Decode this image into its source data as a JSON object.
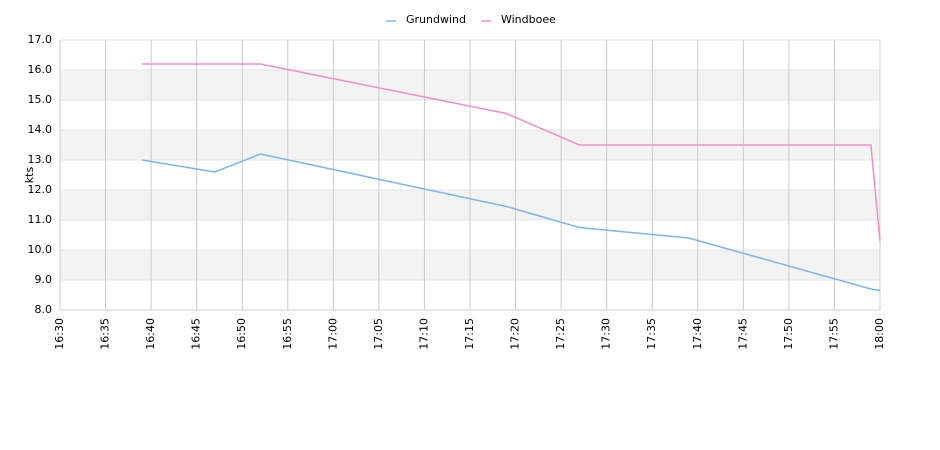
{
  "chart_data": {
    "type": "line",
    "y_label": "kts",
    "x": [
      "16:39",
      "16:47",
      "16:52",
      "17:19",
      "17:27",
      "17:39",
      "17:59",
      "18:00"
    ],
    "series": [
      {
        "name": "Grundwind",
        "color": "#7cb5ec",
        "values": [
          13.0,
          12.6,
          13.2,
          11.45,
          10.75,
          10.4,
          8.7,
          8.65
        ]
      },
      {
        "name": "Windboee",
        "color": "#f28fc2",
        "values": [
          16.2,
          16.2,
          16.2,
          14.55,
          13.5,
          13.5,
          13.5,
          10.3
        ]
      }
    ],
    "xlim": [
      "16:30",
      "18:00"
    ],
    "xticks": [
      "16:30",
      "16:35",
      "16:40",
      "16:45",
      "16:50",
      "16:55",
      "17:00",
      "17:05",
      "17:10",
      "17:15",
      "17:20",
      "17:25",
      "17:30",
      "17:35",
      "17:40",
      "17:45",
      "17:50",
      "17:55",
      "18:00"
    ],
    "ylim": [
      8,
      17
    ],
    "yticks": [
      {
        "value": 8,
        "label": "8.0"
      },
      {
        "value": 9,
        "label": "9.0"
      },
      {
        "value": 10,
        "label": "10.0"
      },
      {
        "value": 11,
        "label": "11.0"
      },
      {
        "value": 12,
        "label": "12.0"
      },
      {
        "value": 13,
        "label": "13.0"
      },
      {
        "value": 14,
        "label": "14.0"
      },
      {
        "value": 15,
        "label": "15.0"
      },
      {
        "value": 16,
        "label": "16.0"
      },
      {
        "value": 17,
        "label": "17.0"
      }
    ],
    "grid": true,
    "legend": "top"
  }
}
